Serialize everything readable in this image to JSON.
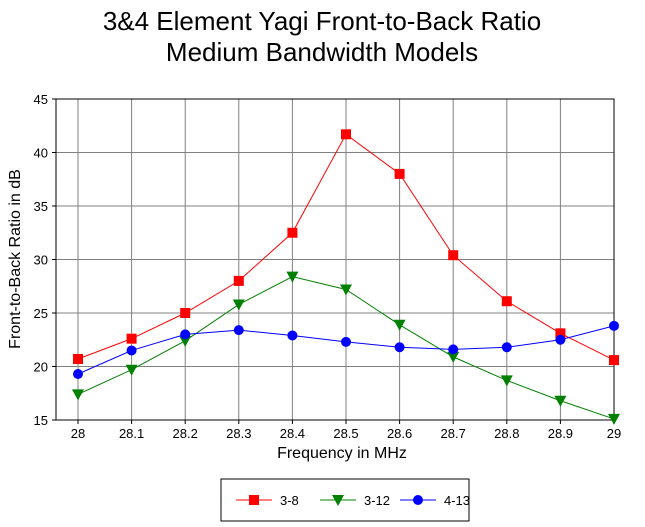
{
  "chart_data": {
    "type": "line",
    "title": [
      "3&4 Element Yagi Front-to-Back Ratio",
      "Medium Bandwidth Models"
    ],
    "xlabel": "Frequency in MHz",
    "ylabel": "Front-to-Back Ratio in dB",
    "x": [
      28,
      28.1,
      28.2,
      28.3,
      28.4,
      28.5,
      28.6,
      28.7,
      28.8,
      28.9,
      29
    ],
    "x_tick_labels": [
      "28",
      "28.1",
      "28.2",
      "28.3",
      "28.4",
      "28.5",
      "28.6",
      "28.7",
      "28.8",
      "28.9",
      "29"
    ],
    "ylim": [
      15,
      45
    ],
    "y_ticks": [
      15,
      20,
      25,
      30,
      35,
      40,
      45
    ],
    "y_tick_labels": [
      "15",
      "20",
      "25",
      "30",
      "35",
      "40",
      "45"
    ],
    "grid": true,
    "legend_placement": "bottom-center",
    "series": [
      {
        "name": "3-8",
        "color": "#ff0000",
        "marker": "square",
        "values": [
          20.7,
          22.6,
          25.0,
          28.0,
          32.5,
          41.7,
          38.0,
          30.4,
          26.1,
          23.1,
          20.6
        ]
      },
      {
        "name": "3-12",
        "color": "#008000",
        "marker": "triangle-down",
        "values": [
          17.4,
          19.7,
          22.4,
          25.8,
          28.4,
          27.2,
          23.9,
          20.9,
          18.7,
          16.8,
          15.1
        ]
      },
      {
        "name": "4-13",
        "color": "#0000ff",
        "marker": "circle",
        "values": [
          19.3,
          21.5,
          23.0,
          23.4,
          22.9,
          22.3,
          21.8,
          21.6,
          21.8,
          22.5,
          23.8
        ]
      }
    ]
  }
}
